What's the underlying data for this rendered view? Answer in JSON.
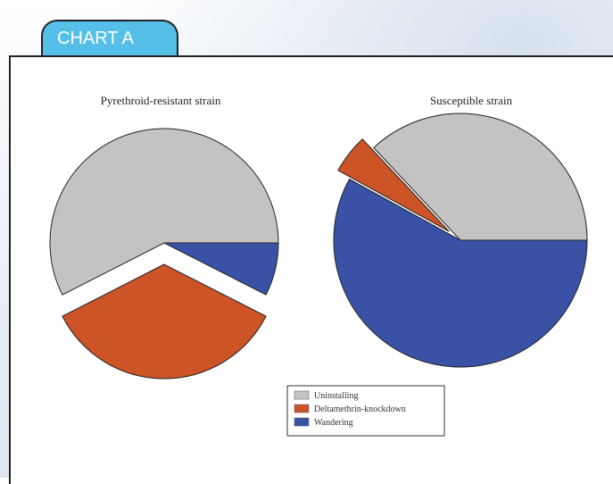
{
  "tab": {
    "label": "CHART A"
  },
  "colors": {
    "uninstalling": "#c5c3c2",
    "deltamethrin": "#cc5427",
    "wandering": "#3a52a6"
  },
  "legend": {
    "items": [
      {
        "label": "Uninstalling",
        "color": "#c5c3c2"
      },
      {
        "label": "Deltamethrin-knockdown",
        "color": "#cc5427"
      },
      {
        "label": "Wandering",
        "color": "#3a52a6"
      }
    ]
  },
  "chart_data": [
    {
      "type": "pie",
      "title": "Pyrethroid-resistant strain",
      "slices": [
        {
          "label": "Uninstalling",
          "value": 57.5,
          "exploded": false
        },
        {
          "label": "Deltamethrin-knockdown",
          "value": 35.0,
          "exploded": true
        },
        {
          "label": "Wandering",
          "value": 7.5,
          "exploded": false
        }
      ]
    },
    {
      "type": "pie",
      "title": "Susceptible strain",
      "slices": [
        {
          "label": "Uninstalling",
          "value": 37.0,
          "exploded": false
        },
        {
          "label": "Deltamethrin-knockdown",
          "value": 5.0,
          "exploded": true
        },
        {
          "label": "Wandering",
          "value": 58.0,
          "exploded": false
        }
      ]
    }
  ]
}
